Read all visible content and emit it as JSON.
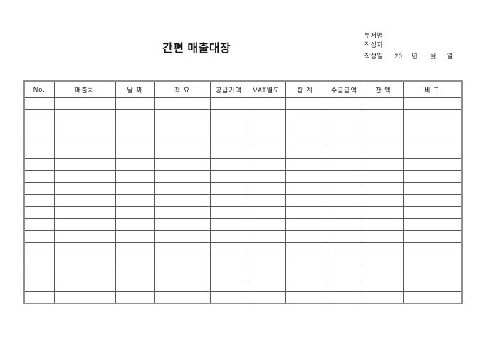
{
  "page": {
    "title": "간편 매출대장",
    "background_color": "#ffffff"
  },
  "info": {
    "department_label": "부서명 :",
    "author_label": "작성자 :",
    "date_label": "작성일 :",
    "date_year_value": "20",
    "date_year_unit": "년",
    "date_month_unit": "월",
    "date_day_unit": "일"
  },
  "table": {
    "header": [
      "No.",
      "매출처",
      "날 짜",
      "적 요",
      "공급가액",
      "VAT별도",
      "합 계",
      "수금금액",
      "잔 액",
      "비 고"
    ],
    "empty_row_count": 17,
    "border_color_outer": "#8e8e8e",
    "border_color_inner": "#565656"
  }
}
